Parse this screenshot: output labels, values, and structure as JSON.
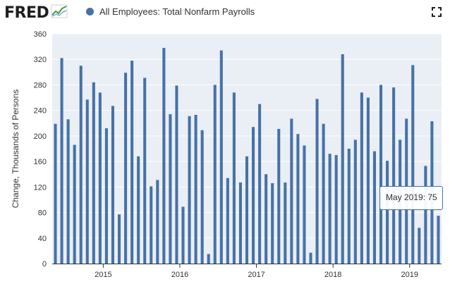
{
  "header": {
    "logo_text": "FRED",
    "series_title": "All Employees: Total Nonfarm Payrolls"
  },
  "tooltip": {
    "date": "May 2019",
    "value": "75"
  },
  "colors": {
    "bar": "#4572a7",
    "plot_background": "#eaeef5",
    "gridline": "#ffffff"
  },
  "icons": {
    "logo_graph": "line-graph-icon",
    "fullscreen": "fullscreen-icon"
  },
  "chart_data": {
    "type": "bar",
    "title": "",
    "ylabel": "Change, Thousands of Persons",
    "xlabel": "",
    "ylim": [
      0,
      360
    ],
    "yticks": [
      0,
      40,
      80,
      120,
      160,
      200,
      240,
      280,
      320,
      360
    ],
    "grid": true,
    "series": [
      {
        "name": "All Employees: Total Nonfarm Payrolls",
        "dates": [
          "2014-05",
          "2014-06",
          "2014-07",
          "2014-08",
          "2014-09",
          "2014-10",
          "2014-11",
          "2014-12",
          "2015-01",
          "2015-02",
          "2015-03",
          "2015-04",
          "2015-05",
          "2015-06",
          "2015-07",
          "2015-08",
          "2015-09",
          "2015-10",
          "2015-11",
          "2015-12",
          "2016-01",
          "2016-02",
          "2016-03",
          "2016-04",
          "2016-05",
          "2016-06",
          "2016-07",
          "2016-08",
          "2016-09",
          "2016-10",
          "2016-11",
          "2016-12",
          "2017-01",
          "2017-02",
          "2017-03",
          "2017-04",
          "2017-05",
          "2017-06",
          "2017-07",
          "2017-08",
          "2017-09",
          "2017-10",
          "2017-11",
          "2017-12",
          "2018-01",
          "2018-02",
          "2018-03",
          "2018-04",
          "2018-05",
          "2018-06",
          "2018-07",
          "2018-08",
          "2018-09",
          "2018-10",
          "2018-11",
          "2018-12",
          "2019-01",
          "2019-02",
          "2019-03",
          "2019-04",
          "2019-05"
        ],
        "values": [
          219,
          322,
          226,
          186,
          310,
          257,
          284,
          268,
          212,
          247,
          77,
          299,
          318,
          168,
          291,
          121,
          131,
          338,
          234,
          279,
          89,
          231,
          233,
          209,
          15,
          280,
          334,
          134,
          268,
          127,
          168,
          214,
          250,
          140,
          126,
          211,
          127,
          227,
          203,
          185,
          17,
          258,
          219,
          172,
          170,
          328,
          180,
          194,
          268,
          260,
          176,
          280,
          161,
          276,
          194,
          227,
          311,
          56,
          153,
          223,
          75
        ]
      }
    ],
    "xticks": [
      {
        "label": "2015",
        "date": "2015-01"
      },
      {
        "label": "2016",
        "date": "2016-01"
      },
      {
        "label": "2017",
        "date": "2017-01"
      },
      {
        "label": "2018",
        "date": "2018-01"
      },
      {
        "label": "2019",
        "date": "2019-01"
      }
    ],
    "highlighted": {
      "date": "2019-05",
      "value": 75
    }
  }
}
